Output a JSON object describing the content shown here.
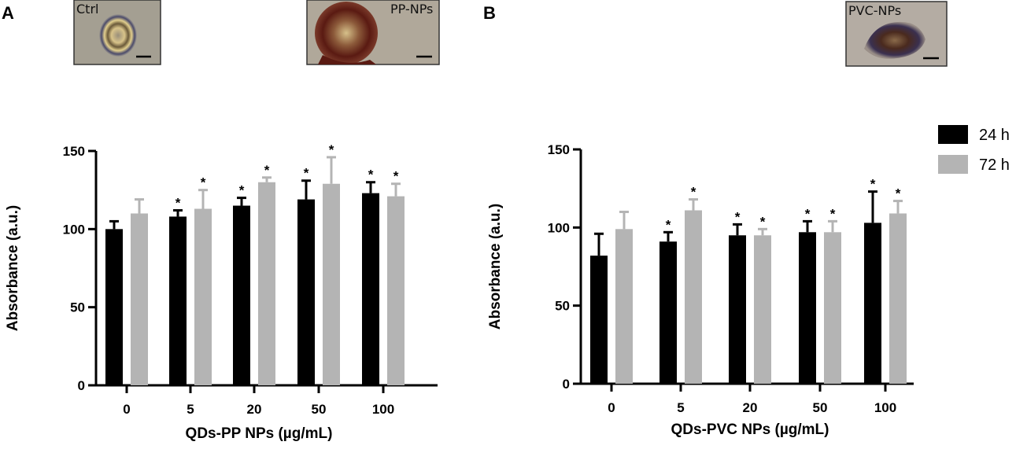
{
  "colors": {
    "series_24h": "#000000",
    "series_72h": "#b4b4b4",
    "axis": "#000000"
  },
  "legend": [
    {
      "label": "24 h",
      "color": "#000000"
    },
    {
      "label": "72 h",
      "color": "#b4b4b4"
    }
  ],
  "micrographs": [
    {
      "label": "Ctrl",
      "panel": "A"
    },
    {
      "label": "PP-NPs",
      "panel": "A"
    },
    {
      "label": "PVC-NPs",
      "panel": "B"
    }
  ],
  "chart_data": [
    {
      "panel": "A",
      "type": "bar",
      "xlabel": "QDs-PP NPs (µg/mL)",
      "ylabel": "Absorbance (a.u.)",
      "ylim": [
        0,
        150
      ],
      "yticks": [
        0,
        50,
        100,
        150
      ],
      "categories": [
        "0",
        "5",
        "20",
        "50",
        "100"
      ],
      "series": [
        {
          "name": "24 h",
          "values": [
            100,
            108,
            115,
            119,
            123
          ],
          "errors": [
            5,
            4,
            5,
            12,
            7
          ],
          "significant": [
            false,
            true,
            true,
            true,
            true
          ]
        },
        {
          "name": "72 h",
          "values": [
            110,
            113,
            130,
            129,
            121
          ],
          "errors": [
            9,
            12,
            3,
            17,
            8
          ],
          "significant": [
            false,
            true,
            true,
            true,
            true
          ]
        }
      ]
    },
    {
      "panel": "B",
      "type": "bar",
      "xlabel": "QDs-PVC NPs (µg/mL)",
      "ylabel": "Absorbance (a.u.)",
      "ylim": [
        0,
        150
      ],
      "yticks": [
        0,
        50,
        100,
        150
      ],
      "categories": [
        "0",
        "5",
        "20",
        "50",
        "100"
      ],
      "series": [
        {
          "name": "24 h",
          "values": [
            82,
            91,
            95,
            97,
            103
          ],
          "errors": [
            14,
            6,
            7,
            7,
            20
          ],
          "significant": [
            false,
            true,
            true,
            true,
            true
          ]
        },
        {
          "name": "72 h",
          "values": [
            99,
            111,
            95,
            97,
            109
          ],
          "errors": [
            11,
            7,
            4,
            7,
            8
          ],
          "significant": [
            false,
            true,
            true,
            true,
            true
          ]
        }
      ]
    }
  ]
}
